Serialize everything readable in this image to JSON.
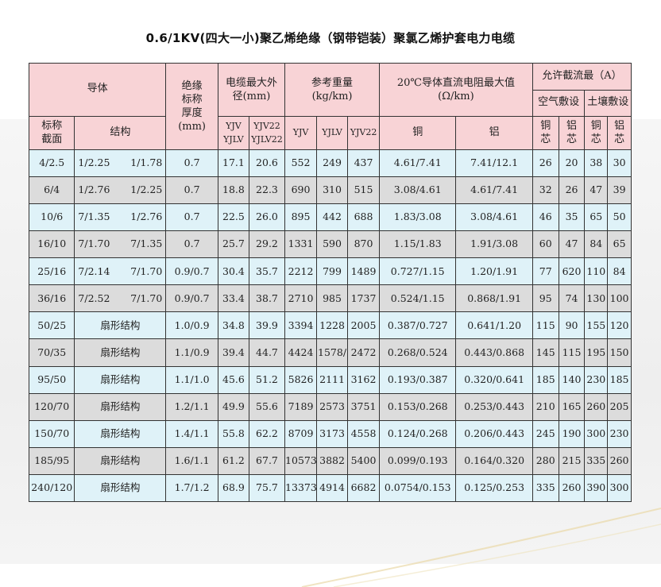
{
  "title": "0.6/1KV(四大一小)聚乙烯绝缘（钢带铠装）聚氯乙烯护套电力电缆",
  "header": {
    "conductor": "导体",
    "insulation": [
      "绝缘",
      "标称",
      "厚度",
      "(mm)"
    ],
    "outer_diameter": [
      "电缆最大外",
      "径(mm)"
    ],
    "weight": [
      "参考重量",
      "(kg/km)"
    ],
    "resistance": [
      "20℃导体直流电阻最大值",
      "(Ω/km)"
    ],
    "current": "允许截流最（A）",
    "air": "空气敷设",
    "soil": "土壤敷设",
    "nominal_section": [
      "标称",
      "截面"
    ],
    "structure": "结构",
    "od_col1": [
      "YJV",
      "YJLV"
    ],
    "od_col2": [
      "YJV22",
      "YJLV22"
    ],
    "w_yjv": "YJV",
    "w_yjlv": "YJLV",
    "w_yjv22": "YJV22",
    "copper": "铜",
    "aluminum": "铝",
    "copper_core": [
      "铜",
      "芯"
    ],
    "aluminum_core": [
      "铝",
      "芯"
    ]
  },
  "rows": [
    {
      "section": "4/2.5",
      "struct_a": "1/2.25",
      "struct_b": "1/1.78",
      "struct": "",
      "ins": "0.7",
      "od1": "17.1",
      "od2": "20.6",
      "w1": "552",
      "w2": "249",
      "w3": "437",
      "r_cu": "4.61/7.41",
      "r_al": "7.41/12.1",
      "air_cu": "26",
      "air_al": "20",
      "soil_cu": "38",
      "soil_al": "30"
    },
    {
      "section": "6/4",
      "struct_a": "1/2.76",
      "struct_b": "1/2.25",
      "struct": "",
      "ins": "0.7",
      "od1": "18.8",
      "od2": "22.3",
      "w1": "690",
      "w2": "310",
      "w3": "515",
      "r_cu": "3.08/4.61",
      "r_al": "4.61/7.41",
      "air_cu": "32",
      "air_al": "26",
      "soil_cu": "47",
      "soil_al": "39"
    },
    {
      "section": "10/6",
      "struct_a": "7/1.35",
      "struct_b": "1/2.76",
      "struct": "",
      "ins": "0.7",
      "od1": "22.5",
      "od2": "26.0",
      "w1": "895",
      "w2": "442",
      "w3": "688",
      "r_cu": "1.83/3.08",
      "r_al": "3.08/4.61",
      "air_cu": "46",
      "air_al": "35",
      "soil_cu": "65",
      "soil_al": "50"
    },
    {
      "section": "16/10",
      "struct_a": "7/1.70",
      "struct_b": "7/1.35",
      "struct": "",
      "ins": "0.7",
      "od1": "25.7",
      "od2": "29.2",
      "w1": "1331",
      "w2": "590",
      "w3": "870",
      "r_cu": "1.15/1.83",
      "r_al": "1.91/3.08",
      "air_cu": "60",
      "air_al": "47",
      "soil_cu": "84",
      "soil_al": "65"
    },
    {
      "section": "25/16",
      "struct_a": "7/2.14",
      "struct_b": "7/1.70",
      "struct": "",
      "ins": "0.9/0.7",
      "od1": "30.4",
      "od2": "35.7",
      "w1": "2212",
      "w2": "799",
      "w3": "1489",
      "r_cu": "0.727/1.15",
      "r_al": "1.20/1.91",
      "air_cu": "77",
      "air_al": "620",
      "soil_cu": "110",
      "soil_al": "84"
    },
    {
      "section": "36/16",
      "struct_a": "7/2.52",
      "struct_b": "7/1.70",
      "struct": "",
      "ins": "0.9/0.7",
      "od1": "33.4",
      "od2": "38.7",
      "w1": "2710",
      "w2": "985",
      "w3": "1737",
      "r_cu": "0.524/1.15",
      "r_al": "0.868/1.91",
      "air_cu": "95",
      "air_al": "74",
      "soil_cu": "130",
      "soil_al": "100"
    },
    {
      "section": "50/25",
      "struct_a": "",
      "struct_b": "",
      "struct": "扇形结构",
      "ins": "1.0/0.9",
      "od1": "34.8",
      "od2": "39.9",
      "w1": "3394",
      "w2": "1228",
      "w3": "2005",
      "r_cu": "0.387/0.727",
      "r_al": "0.641/1.20",
      "air_cu": "115",
      "air_al": "90",
      "soil_cu": "155",
      "soil_al": "120"
    },
    {
      "section": "70/35",
      "struct_a": "",
      "struct_b": "",
      "struct": "扇形结构",
      "ins": "1.1/0.9",
      "od1": "39.4",
      "od2": "44.7",
      "w1": "4424",
      "w2": "1578/",
      "w3": "2472",
      "r_cu": "0.268/0.524",
      "r_al": "0.443/0.868",
      "air_cu": "145",
      "air_al": "115",
      "soil_cu": "195",
      "soil_al": "150"
    },
    {
      "section": "95/50",
      "struct_a": "",
      "struct_b": "",
      "struct": "扇形结构",
      "ins": "1.1/1.0",
      "od1": "45.6",
      "od2": "51.2",
      "w1": "5826",
      "w2": "2111",
      "w3": "3162",
      "r_cu": "0.193/0.387",
      "r_al": "0.320/0.641",
      "air_cu": "185",
      "air_al": "140",
      "soil_cu": "230",
      "soil_al": "185"
    },
    {
      "section": "120/70",
      "struct_a": "",
      "struct_b": "",
      "struct": "扇形结构",
      "ins": "1.2/1.1",
      "od1": "49.9",
      "od2": "55.6",
      "w1": "7189",
      "w2": "2573",
      "w3": "3751",
      "r_cu": "0.153/0.268",
      "r_al": "0.253/0.443",
      "air_cu": "210",
      "air_al": "165",
      "soil_cu": "260",
      "soil_al": "205"
    },
    {
      "section": "150/70",
      "struct_a": "",
      "struct_b": "",
      "struct": "扇形结构",
      "ins": "1.4/1.1",
      "od1": "55.8",
      "od2": "62.2",
      "w1": "8709",
      "w2": "3173",
      "w3": "4558",
      "r_cu": "0.124/0.268",
      "r_al": "0.206/0.443",
      "air_cu": "245",
      "air_al": "190",
      "soil_cu": "300",
      "soil_al": "230"
    },
    {
      "section": "185/95",
      "struct_a": "",
      "struct_b": "",
      "struct": "扇形结构",
      "ins": "1.6/1.1",
      "od1": "61.2",
      "od2": "67.7",
      "w1": "10573",
      "w2": "3882",
      "w3": "5400",
      "r_cu": "0.099/0.193",
      "r_al": "0.164/0.320",
      "air_cu": "280",
      "air_al": "215",
      "soil_cu": "335",
      "soil_al": "260"
    },
    {
      "section": "240/120",
      "struct_a": "",
      "struct_b": "",
      "struct": "扇形结构",
      "ins": "1.7/1.2",
      "od1": "68.9",
      "od2": "75.7",
      "w1": "13373",
      "w2": "4914",
      "w3": "6682",
      "r_cu": "0.0754/0.153",
      "r_al": "0.125/0.253",
      "air_cu": "335",
      "air_al": "260",
      "soil_cu": "390",
      "soil_al": "300"
    }
  ]
}
